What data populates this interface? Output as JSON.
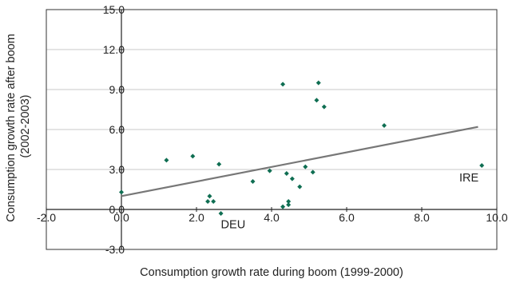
{
  "chart_data": {
    "type": "scatter",
    "title": "",
    "xlabel": "Consumption growth rate during boom (1999-2000)",
    "ylabel_lines": [
      "Consumption growth rate after boom",
      "(2002-2003)"
    ],
    "xlim": [
      -2.0,
      10.0
    ],
    "ylim": [
      -3.0,
      15.0
    ],
    "x_ticks": [
      "-2.0",
      "0.0",
      "2.0",
      "4.0",
      "6.0",
      "8.0",
      "10.0"
    ],
    "y_ticks": [
      "-3.0",
      "0.0",
      "3.0",
      "6.0",
      "9.0",
      "12.0",
      "15.0"
    ],
    "grid": "horizontal",
    "point_color": "#0f6e52",
    "trend_color": "#777777",
    "points": [
      {
        "x": 0.0,
        "y": 1.3
      },
      {
        "x": 1.2,
        "y": 3.7
      },
      {
        "x": 1.9,
        "y": 4.0
      },
      {
        "x": 2.6,
        "y": 3.4
      },
      {
        "x": 2.3,
        "y": 0.6
      },
      {
        "x": 2.35,
        "y": 1.0
      },
      {
        "x": 2.45,
        "y": 0.6
      },
      {
        "x": 2.65,
        "y": -0.3
      },
      {
        "x": 3.5,
        "y": 2.1
      },
      {
        "x": 3.95,
        "y": 2.9
      },
      {
        "x": 4.3,
        "y": 9.4
      },
      {
        "x": 4.3,
        "y": 0.2
      },
      {
        "x": 4.4,
        "y": 2.7
      },
      {
        "x": 4.45,
        "y": 0.6
      },
      {
        "x": 4.45,
        "y": 0.35
      },
      {
        "x": 4.55,
        "y": 2.3
      },
      {
        "x": 4.75,
        "y": 1.7
      },
      {
        "x": 4.9,
        "y": 3.2
      },
      {
        "x": 5.1,
        "y": 2.8
      },
      {
        "x": 5.2,
        "y": 8.2
      },
      {
        "x": 5.25,
        "y": 9.5
      },
      {
        "x": 5.4,
        "y": 7.7
      },
      {
        "x": 7.0,
        "y": 6.3
      },
      {
        "x": 9.6,
        "y": 3.3
      }
    ],
    "trendline": {
      "x": [
        0.0,
        9.5
      ],
      "y": [
        1.0,
        6.2
      ]
    },
    "annotations": [
      {
        "text": "DEU",
        "x": 2.65,
        "y": -1.4
      },
      {
        "text": "IRE",
        "x": 9.0,
        "y": 2.1
      }
    ]
  }
}
